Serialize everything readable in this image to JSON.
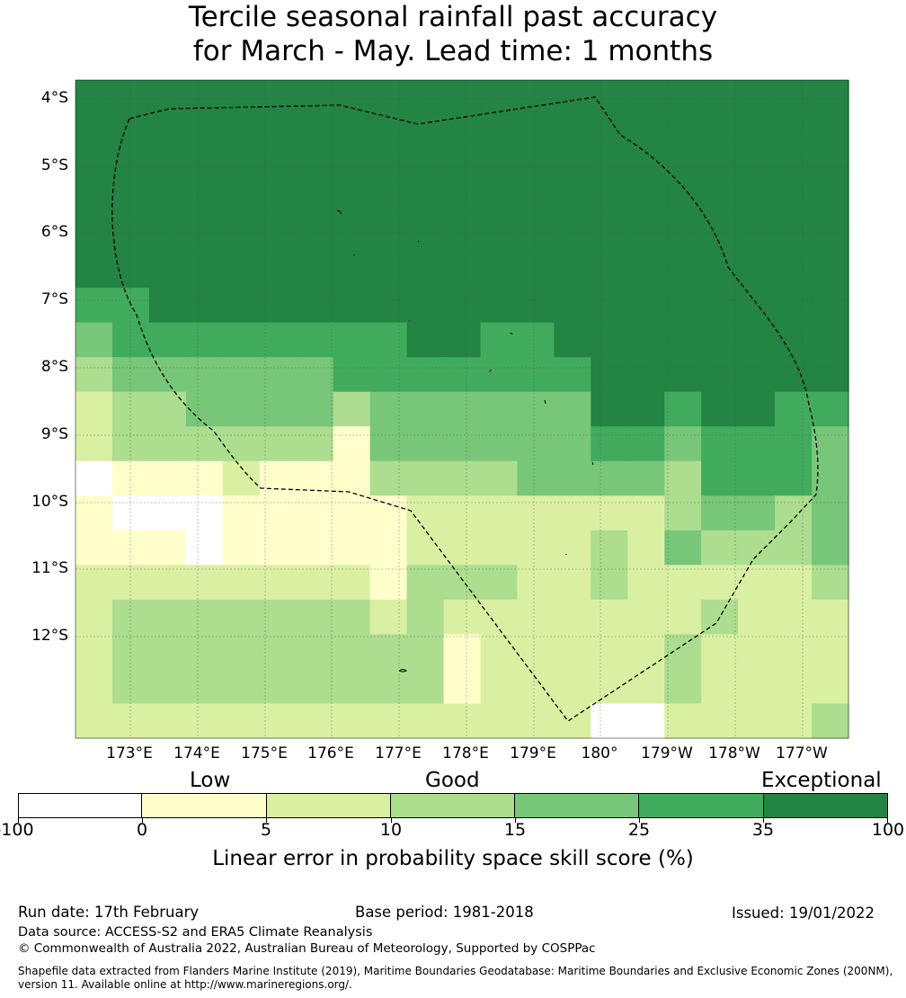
{
  "title_line1": "Tercile seasonal rainfall past accuracy",
  "title_line2": "for March - May. Lead time: 1 months",
  "latitude_labels": [
    "4°S",
    "5°S",
    "6°S",
    "7°S",
    "8°S",
    "9°S",
    "10°S",
    "11°S",
    "12°S"
  ],
  "longitude_labels": [
    "173°E",
    "174°E",
    "175°E",
    "176°E",
    "177°E",
    "178°E",
    "179°E",
    "180°",
    "179°W",
    "178°W",
    "177°W"
  ],
  "legend": {
    "categories": [
      "Low",
      "Good",
      "Exceptional"
    ],
    "tick_labels": [
      "-100",
      "0",
      "5",
      "10",
      "15",
      "25",
      "35",
      "100"
    ],
    "colors": [
      "#ffffff",
      "#ffffcc",
      "#d9f0a3",
      "#addd8e",
      "#78c679",
      "#41ab5d",
      "#238443"
    ],
    "label": "Linear error in probability space skill score (%)"
  },
  "grid": {
    "columns": 21,
    "rows": 19,
    "class_index_rows": [
      [
        6,
        6,
        6,
        6,
        6,
        6,
        6,
        6,
        6,
        6,
        6,
        6,
        6,
        6,
        6,
        6,
        6,
        6,
        6,
        6,
        6
      ],
      [
        6,
        6,
        6,
        6,
        6,
        6,
        6,
        6,
        6,
        6,
        6,
        6,
        6,
        6,
        6,
        6,
        6,
        6,
        6,
        6,
        6
      ],
      [
        6,
        6,
        6,
        6,
        6,
        6,
        6,
        6,
        6,
        6,
        6,
        6,
        6,
        6,
        6,
        6,
        6,
        6,
        6,
        6,
        6
      ],
      [
        6,
        6,
        6,
        6,
        6,
        6,
        6,
        6,
        6,
        6,
        6,
        6,
        6,
        6,
        6,
        6,
        6,
        6,
        6,
        6,
        6
      ],
      [
        6,
        6,
        6,
        6,
        6,
        6,
        6,
        6,
        6,
        6,
        6,
        6,
        6,
        6,
        6,
        6,
        6,
        6,
        6,
        6,
        6
      ],
      [
        6,
        6,
        6,
        6,
        6,
        6,
        6,
        6,
        6,
        6,
        6,
        6,
        6,
        6,
        6,
        6,
        6,
        6,
        6,
        6,
        6
      ],
      [
        5,
        5,
        6,
        6,
        6,
        6,
        6,
        6,
        6,
        6,
        6,
        6,
        6,
        6,
        6,
        6,
        6,
        6,
        6,
        6,
        6
      ],
      [
        4,
        5,
        5,
        5,
        5,
        5,
        5,
        5,
        5,
        6,
        6,
        5,
        5,
        6,
        6,
        6,
        6,
        6,
        6,
        6,
        6
      ],
      [
        3,
        4,
        4,
        4,
        4,
        4,
        4,
        5,
        5,
        5,
        5,
        5,
        5,
        5,
        6,
        6,
        6,
        6,
        6,
        6,
        6
      ],
      [
        2,
        3,
        3,
        4,
        4,
        4,
        4,
        3,
        4,
        4,
        4,
        4,
        4,
        4,
        6,
        6,
        5,
        6,
        6,
        5,
        5
      ],
      [
        2,
        3,
        3,
        3,
        3,
        3,
        3,
        1,
        4,
        4,
        4,
        4,
        4,
        4,
        5,
        5,
        4,
        5,
        5,
        5,
        4
      ],
      [
        0,
        1,
        1,
        1,
        2,
        1,
        1,
        1,
        3,
        3,
        3,
        3,
        4,
        4,
        4,
        4,
        3,
        5,
        5,
        5,
        4
      ],
      [
        1,
        0,
        0,
        0,
        1,
        1,
        1,
        1,
        1,
        2,
        2,
        2,
        2,
        2,
        2,
        2,
        3,
        4,
        4,
        3,
        4
      ],
      [
        1,
        1,
        1,
        0,
        1,
        1,
        1,
        1,
        1,
        2,
        2,
        2,
        2,
        2,
        3,
        2,
        4,
        3,
        3,
        3,
        4
      ],
      [
        2,
        2,
        2,
        2,
        2,
        2,
        2,
        2,
        1,
        3,
        3,
        3,
        2,
        2,
        3,
        2,
        2,
        2,
        2,
        2,
        3
      ],
      [
        2,
        3,
        3,
        3,
        3,
        3,
        3,
        3,
        2,
        3,
        2,
        2,
        2,
        2,
        2,
        2,
        2,
        3,
        2,
        2,
        2
      ],
      [
        2,
        3,
        3,
        3,
        3,
        3,
        3,
        3,
        3,
        3,
        1,
        2,
        2,
        2,
        2,
        2,
        3,
        2,
        2,
        2,
        2
      ],
      [
        2,
        3,
        3,
        3,
        3,
        3,
        3,
        3,
        3,
        3,
        1,
        2,
        2,
        2,
        2,
        2,
        3,
        2,
        2,
        2,
        2
      ],
      [
        2,
        2,
        2,
        2,
        2,
        2,
        2,
        2,
        2,
        2,
        2,
        2,
        2,
        2,
        0,
        0,
        2,
        2,
        2,
        2,
        3
      ]
    ]
  },
  "footer": {
    "run_date": "Run date: 17th February",
    "base_period": "Base period: 1981-2018",
    "issued": "Issued: 19/01/2022",
    "data_source": "Data source: ACCESS-S2 and ERA5 Climate Reanalysis",
    "copyright": "© Commonwealth of Australia 2022, Australian Bureau of Meteorology, Supported by COSPPac",
    "shapefile_line1": "Shapefile data extracted from Flanders Marine Institute (2019), Maritime Boundaries Geodatabase: Maritime Boundaries and Exclusive Economic Zones (200NM),",
    "shapefile_line2": "version 11. Available online at http://www.marineregions.org/."
  }
}
